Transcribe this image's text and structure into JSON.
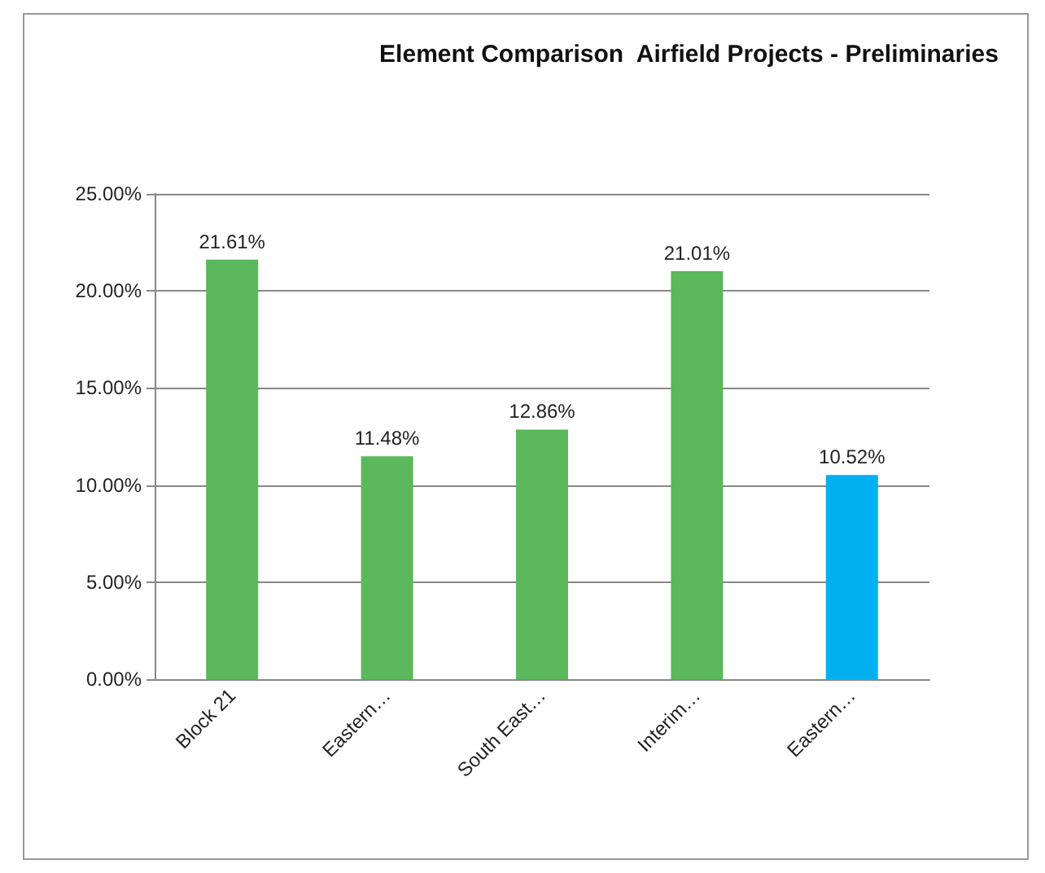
{
  "chart_data": {
    "type": "bar",
    "title": "Element Comparison  Airfield Projects - Preliminaries",
    "categories": [
      "Block 21",
      "Eastern…",
      "South East…",
      "Interim…",
      "Eastern…"
    ],
    "values": [
      21.61,
      11.48,
      12.86,
      21.01,
      10.52
    ],
    "value_labels": [
      "21.61%",
      "11.48%",
      "12.86%",
      "21.01%",
      "10.52%"
    ],
    "colors": [
      "#5cb85c",
      "#5cb85c",
      "#5cb85c",
      "#5cb85c",
      "#00b0f0"
    ],
    "ylim": [
      0,
      25
    ],
    "yticks": [
      {
        "value": 0,
        "label": "0.00%"
      },
      {
        "value": 5,
        "label": "5.00%"
      },
      {
        "value": 10,
        "label": "10.00%"
      },
      {
        "value": 15,
        "label": "15.00%"
      },
      {
        "value": 20,
        "label": "20.00%"
      },
      {
        "value": 25,
        "label": "25.00%"
      }
    ],
    "grid": "y"
  }
}
